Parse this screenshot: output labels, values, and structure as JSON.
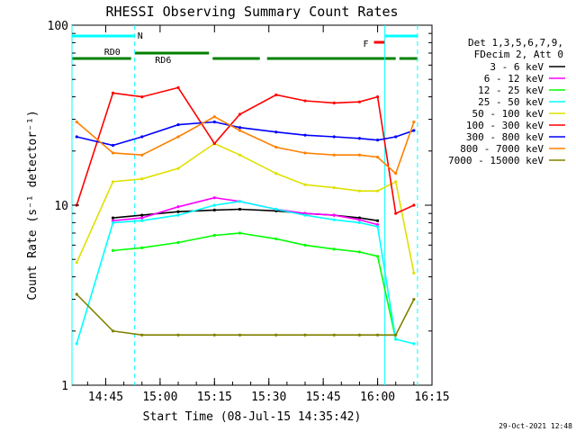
{
  "chart_data": {
    "type": "line",
    "title": "RHESSI Observing Summary Count Rates",
    "xlabel": "Start Time (08-Jul-15 14:35:42)",
    "ylabel": "Count Rate (s⁻¹ detector⁻¹)",
    "y_scale": "log",
    "ylim": [
      1,
      100
    ],
    "xlim": [
      "14:35:42",
      "16:15:00"
    ],
    "x_ticks": [
      "14:45",
      "15:00",
      "15:15",
      "15:30",
      "15:45",
      "16:00",
      "16:15"
    ],
    "y_ticks": [
      "1",
      "10",
      "100"
    ],
    "timestamp": "29-Oct-2021 12:48",
    "legend": {
      "placement": "right",
      "header": [
        "Det 1,3,5,6,7,9,",
        "FDecim 2, Att 0"
      ]
    },
    "flags": [
      {
        "label": "N",
        "color": "#00ffff",
        "segments": [
          [
            "14:35:42",
            "14:53:00"
          ],
          [
            "16:02:00",
            "16:11:00"
          ]
        ]
      },
      {
        "label": "RD0",
        "color": "#008000",
        "segments": [
          [
            "14:53:00",
            "15:13:30"
          ]
        ]
      },
      {
        "label": "RD6",
        "color": "#008000",
        "segments": [
          [
            "14:35:42",
            "14:52:00"
          ],
          [
            "15:14:30",
            "15:27:30"
          ],
          [
            "15:29:30",
            "16:05:00"
          ],
          [
            "16:06:00",
            "16:11:00"
          ]
        ]
      },
      {
        "label": "F",
        "color": "#ff0000",
        "segments": [
          [
            "15:59:00",
            "16:02:00"
          ]
        ]
      }
    ],
    "series": [
      {
        "name": "3 - 6 keV",
        "color": "#000000",
        "values": [
          null,
          8.5,
          8.8,
          9.2,
          9.4,
          9.5,
          9.3,
          9.0,
          8.8,
          8.5,
          8.2,
          null,
          null
        ]
      },
      {
        "name": "6 - 12 keV",
        "color": "#ff00ff",
        "values": [
          null,
          8.2,
          8.5,
          9.8,
          11.0,
          10.5,
          9.5,
          9.0,
          8.8,
          8.3,
          7.8,
          null,
          null
        ]
      },
      {
        "name": "12 - 25 keV",
        "color": "#00ff00",
        "values": [
          null,
          5.6,
          5.8,
          6.2,
          6.8,
          7.0,
          6.5,
          6.0,
          5.7,
          5.5,
          5.2,
          1.8,
          null
        ]
      },
      {
        "name": "25 - 50 keV",
        "color": "#00ffff",
        "values": [
          1.7,
          8.0,
          8.2,
          8.8,
          10.0,
          10.5,
          9.5,
          8.8,
          8.3,
          8.0,
          7.6,
          1.8,
          1.7
        ]
      },
      {
        "name": "50 - 100 keV",
        "color": "#e0e000",
        "values": [
          4.8,
          13.5,
          14.0,
          16.0,
          22.0,
          19.0,
          15.0,
          13.0,
          12.5,
          12.0,
          12.0,
          13.5,
          4.2
        ]
      },
      {
        "name": "100 - 300 keV",
        "color": "#ff0000",
        "values": [
          10.0,
          42.0,
          40.0,
          45.0,
          22.0,
          32.0,
          41.0,
          38.0,
          37.0,
          37.5,
          40.0,
          9.0,
          10.0
        ]
      },
      {
        "name": "300 - 800 keV",
        "color": "#0000ff",
        "values": [
          24.0,
          21.5,
          24.0,
          28.0,
          29.0,
          27.0,
          25.5,
          24.5,
          24.0,
          23.5,
          23.0,
          24.0,
          26.0
        ]
      },
      {
        "name": "800 - 7000 keV",
        "color": "#ff8000",
        "values": [
          29.0,
          19.5,
          19.0,
          24.0,
          31.0,
          26.0,
          21.0,
          19.5,
          19.0,
          19.0,
          18.5,
          15.0,
          29.0
        ]
      },
      {
        "name": "7000 - 15000 keV",
        "color": "#808000",
        "values": [
          3.2,
          2.0,
          1.9,
          1.9,
          1.9,
          1.9,
          1.9,
          1.9,
          1.9,
          1.9,
          1.9,
          1.9,
          3.0
        ]
      }
    ],
    "x": [
      "14:37",
      "14:47",
      "14:55",
      "15:05",
      "15:15",
      "15:22",
      "15:32",
      "15:40",
      "15:48",
      "15:55",
      "16:00",
      "16:05",
      "16:10"
    ]
  }
}
